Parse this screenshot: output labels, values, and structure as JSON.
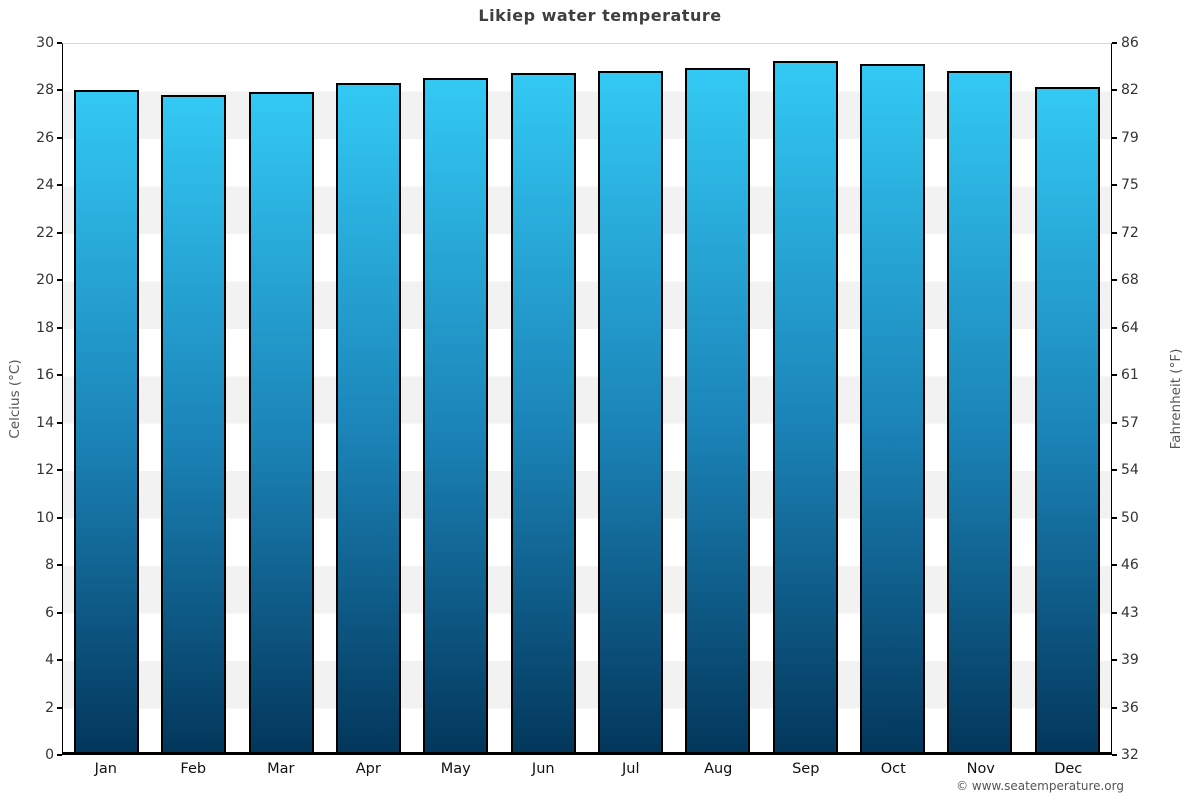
{
  "title": "Likiep water temperature",
  "credit": "© www.seatemperature.org",
  "axes": {
    "left_label": "Celcius (°C)",
    "right_label": "Fahrenheit (°F)"
  },
  "chart_data": {
    "type": "bar",
    "title": "Likiep water temperature",
    "categories": [
      "Jan",
      "Feb",
      "Mar",
      "Apr",
      "May",
      "Jun",
      "Jul",
      "Aug",
      "Sep",
      "Oct",
      "Nov",
      "Dec"
    ],
    "values": [
      27.9,
      27.7,
      27.8,
      28.2,
      28.4,
      28.6,
      28.7,
      28.8,
      29.1,
      29.0,
      28.7,
      28.0
    ],
    "values_unit": "°C",
    "ylabel_left": "Celcius (°C)",
    "ylabel_right": "Fahrenheit (°F)",
    "ylim_celsius": [
      0,
      30
    ],
    "left_ticks_celsius": [
      0,
      2,
      4,
      6,
      8,
      10,
      12,
      14,
      16,
      18,
      20,
      22,
      24,
      26,
      28,
      30
    ],
    "right_ticks_fahrenheit": [
      32,
      36,
      39,
      43,
      46,
      50,
      54,
      57,
      61,
      64,
      68,
      72,
      75,
      79,
      82,
      86
    ],
    "grid": "alternating horizontal bands every 2°C",
    "legend": "none",
    "colors": {
      "bar_gradient_top": "#33c9f4",
      "bar_gradient_mid": "#1b84b8",
      "bar_gradient_bottom": "#03375c",
      "bar_border": "#000000",
      "band_light": "#ffffff",
      "band_gray": "#f2f2f2",
      "title_text": "#3f3f3f",
      "tick_text": "#333333",
      "axis_label_text": "#555555",
      "credit_text": "#555555"
    }
  }
}
